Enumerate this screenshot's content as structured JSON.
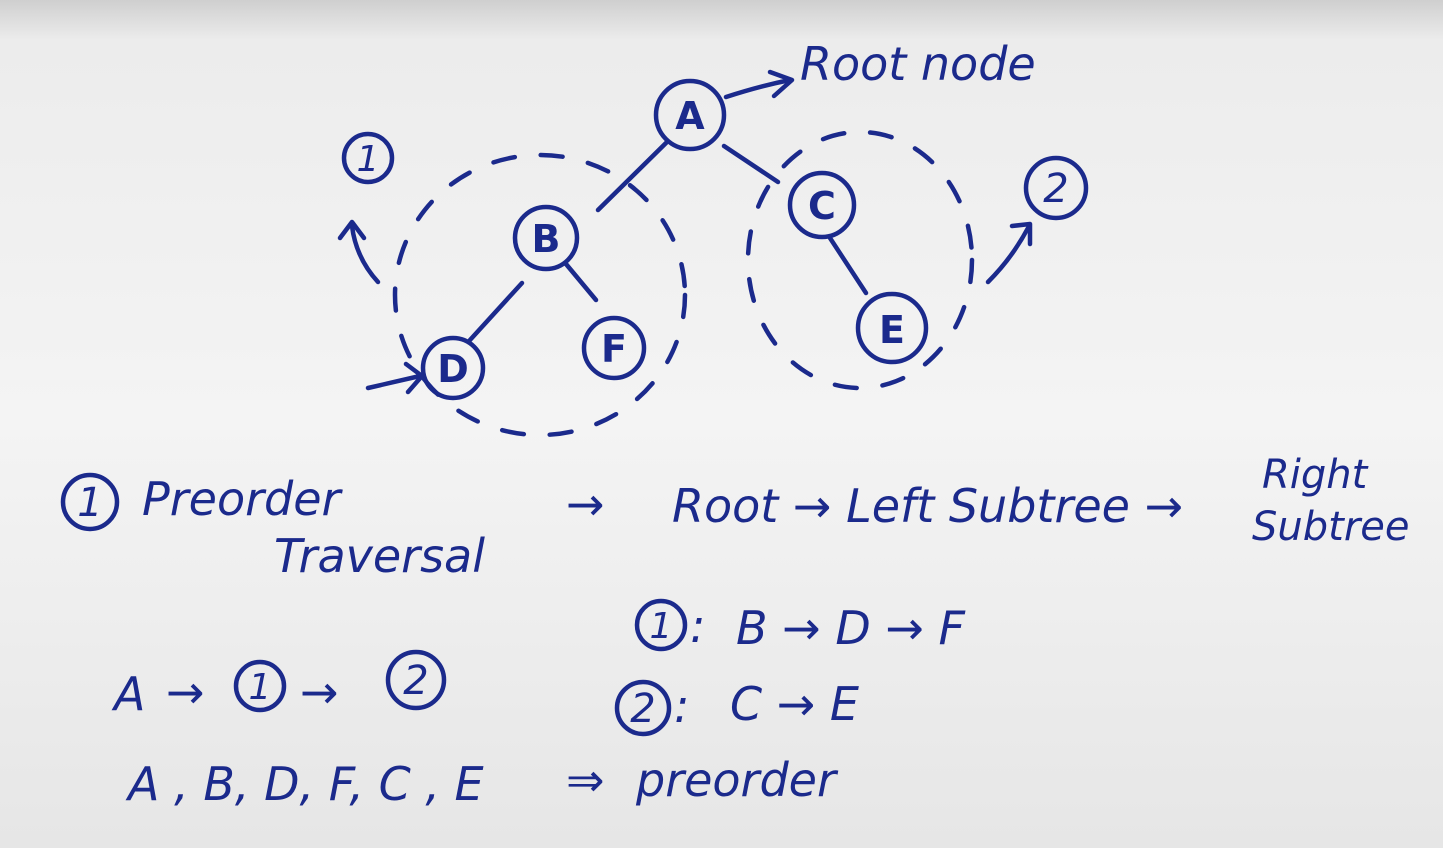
{
  "tree": {
    "nodes": [
      {
        "id": "A",
        "label": "A"
      },
      {
        "id": "B",
        "label": "B"
      },
      {
        "id": "C",
        "label": "C"
      },
      {
        "id": "D",
        "label": "D"
      },
      {
        "id": "F",
        "label": "F"
      },
      {
        "id": "E",
        "label": "E"
      }
    ],
    "edges": [
      [
        "A",
        "B"
      ],
      [
        "A",
        "C"
      ],
      [
        "B",
        "D"
      ],
      [
        "B",
        "F"
      ],
      [
        "C",
        "E"
      ]
    ],
    "root_annotation": "Root node",
    "subtree_markers": [
      "1",
      "2"
    ]
  },
  "notes": {
    "bullet_number": "1",
    "title_line1": "Preorder",
    "title_line2": "Traversal",
    "implies": "→",
    "rule": "Root → Left Subtree →",
    "rule_right1": "Right",
    "rule_right2": "Subtree",
    "sequence_a": "A",
    "sequence_arrow": "→",
    "circled_1": "1",
    "circled_2": "2",
    "subtree1_label": "B → D → F",
    "subtree2_label": "C → E",
    "colon": ":",
    "result_list": "A , B, D, F, C , E",
    "result_implies": "⇒",
    "result_word": "preorder"
  },
  "colors": {
    "ink": "#1b2a8c"
  }
}
